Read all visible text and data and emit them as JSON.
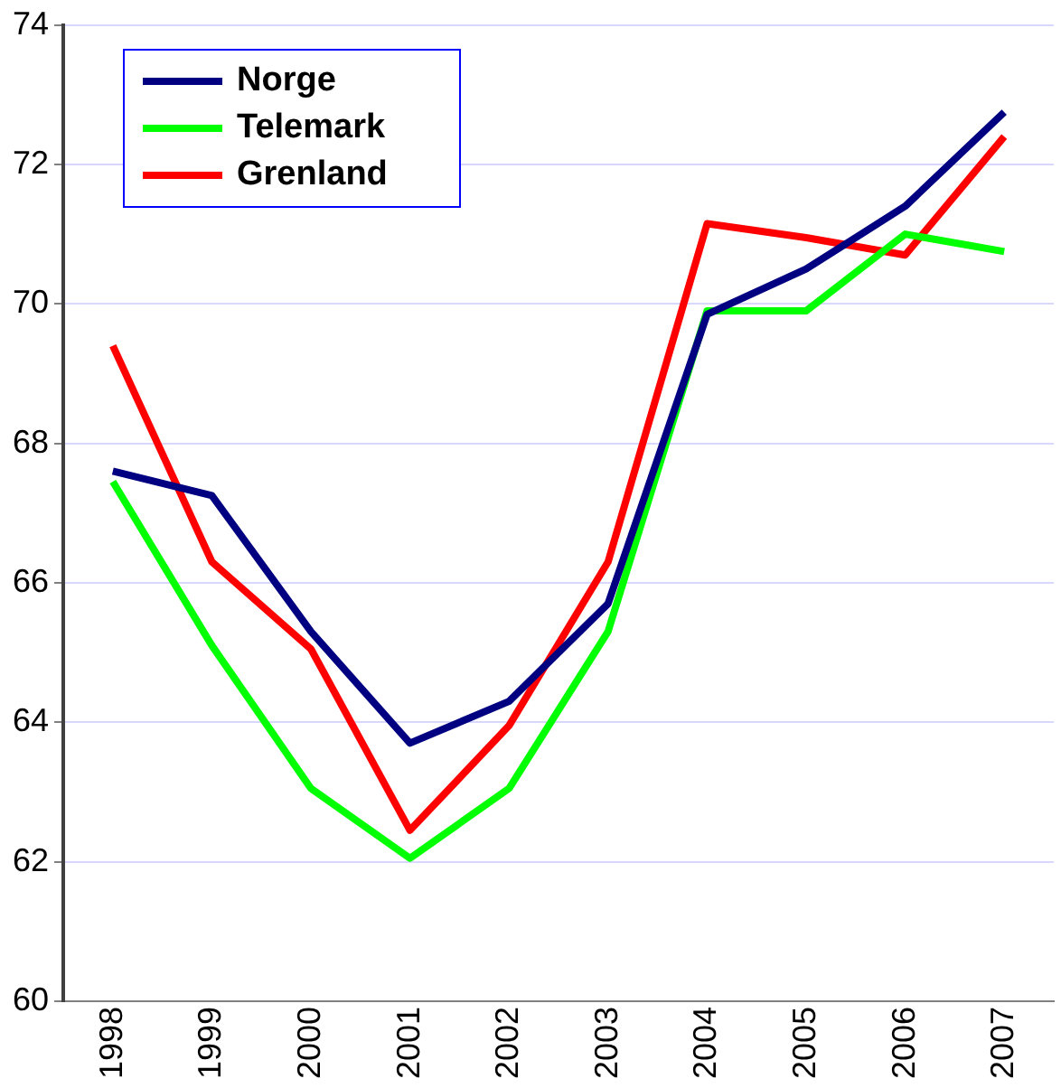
{
  "chart_data": {
    "type": "line",
    "categories": [
      "1998",
      "1999",
      "2000",
      "2001",
      "2002",
      "2003",
      "2004",
      "2005",
      "2006",
      "2007"
    ],
    "series": [
      {
        "name": "Norge",
        "color": "#000080",
        "values": [
          67.6,
          67.25,
          65.3,
          63.7,
          64.3,
          65.7,
          69.85,
          70.5,
          71.4,
          72.75
        ]
      },
      {
        "name": "Telemark",
        "color": "#00ff00",
        "values": [
          67.45,
          65.1,
          63.05,
          62.05,
          63.05,
          65.3,
          69.9,
          69.9,
          71.0,
          70.75
        ]
      },
      {
        "name": "Grenland",
        "color": "#ff0000",
        "values": [
          69.4,
          66.3,
          65.05,
          62.45,
          63.95,
          66.3,
          71.15,
          70.95,
          70.7,
          72.4
        ]
      }
    ],
    "ylim": [
      60,
      74
    ],
    "yticks": [
      60,
      62,
      64,
      66,
      68,
      70,
      72,
      74
    ],
    "grid": "y",
    "legend": "top left",
    "marker": "none",
    "line_style": "solid"
  }
}
